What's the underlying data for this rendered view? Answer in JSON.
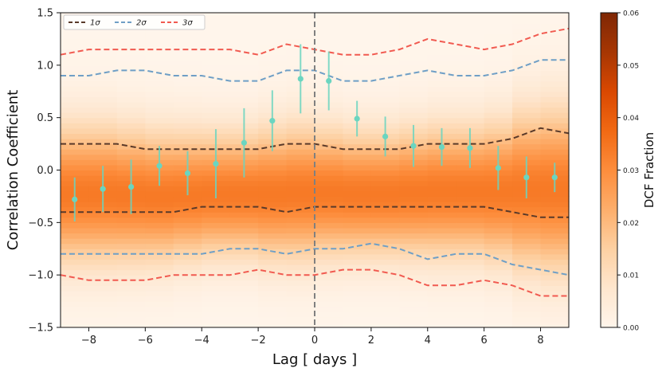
{
  "chart_data": {
    "type": "heatmap",
    "xlabel": "Lag [ days ]",
    "ylabel": "Correlation Coefficient",
    "xlim": [
      -9,
      9
    ],
    "ylim": [
      -1.5,
      1.5
    ],
    "x_ticks": [
      -8,
      -6,
      -4,
      -2,
      0,
      2,
      4,
      6,
      8
    ],
    "x_tick_labels": [
      "−8",
      "−6",
      "−4",
      "−2",
      "0",
      "2",
      "4",
      "6",
      "8"
    ],
    "y_ticks": [
      -1.5,
      -1.0,
      -0.5,
      0.0,
      0.5,
      1.0,
      1.5
    ],
    "y_tick_labels": [
      "−1.5",
      "−1.0",
      "−0.5",
      "0.0",
      "0.5",
      "1.0",
      "1.5"
    ],
    "heatmap_bin_centers": [
      -8.5,
      -7.5,
      -6.5,
      -5.5,
      -4.5,
      -3.5,
      -2.5,
      -1.5,
      -0.5,
      0.5,
      1.5,
      2.5,
      3.5,
      4.5,
      5.5,
      6.5,
      7.5,
      8.5
    ],
    "colorbar": {
      "label": "DCF Fraction",
      "range": [
        0.0,
        0.06
      ],
      "ticks": [
        0.0,
        0.01,
        0.02,
        0.03,
        0.04,
        0.05,
        0.06
      ],
      "tick_labels": [
        "0.00",
        "0.01",
        "0.02",
        "0.03",
        "0.04",
        "0.05",
        "0.06"
      ],
      "colors": [
        "#fff5eb",
        "#fee6ce",
        "#fdd0a2",
        "#fdae6b",
        "#fd8d3c",
        "#f16913",
        "#d94801",
        "#a63603",
        "#7f2704"
      ]
    },
    "legend": {
      "position": "top-left",
      "entries": [
        {
          "label": "1σ",
          "color": "#5a3a2a"
        },
        {
          "label": "2σ",
          "color": "#6f9fc6"
        },
        {
          "label": "3σ",
          "color": "#f15a50"
        }
      ]
    },
    "vline": {
      "x": 0,
      "color": "#808080"
    },
    "band_x": [
      -9,
      -8,
      -7,
      -6,
      -5,
      -4,
      -3,
      -2,
      -1,
      0,
      1,
      2,
      3,
      4,
      5,
      6,
      7,
      8,
      9
    ],
    "bands": [
      {
        "name": "3sigma_upper",
        "sigma": "3σ",
        "values": [
          1.1,
          1.15,
          1.15,
          1.15,
          1.15,
          1.15,
          1.15,
          1.1,
          1.2,
          1.15,
          1.1,
          1.1,
          1.15,
          1.25,
          1.2,
          1.15,
          1.2,
          1.3,
          1.35
        ]
      },
      {
        "name": "2sigma_upper",
        "sigma": "2σ",
        "values": [
          0.9,
          0.9,
          0.95,
          0.95,
          0.9,
          0.9,
          0.85,
          0.85,
          0.95,
          0.95,
          0.85,
          0.85,
          0.9,
          0.95,
          0.9,
          0.9,
          0.95,
          1.05,
          1.05
        ]
      },
      {
        "name": "1sigma_upper",
        "sigma": "1σ",
        "values": [
          0.25,
          0.25,
          0.25,
          0.2,
          0.2,
          0.2,
          0.2,
          0.2,
          0.25,
          0.25,
          0.2,
          0.2,
          0.2,
          0.25,
          0.25,
          0.25,
          0.3,
          0.4,
          0.35
        ]
      },
      {
        "name": "1sigma_lower",
        "sigma": "1σ",
        "values": [
          -0.4,
          -0.4,
          -0.4,
          -0.4,
          -0.4,
          -0.35,
          -0.35,
          -0.35,
          -0.4,
          -0.35,
          -0.35,
          -0.35,
          -0.35,
          -0.35,
          -0.35,
          -0.35,
          -0.4,
          -0.45,
          -0.45
        ]
      },
      {
        "name": "2sigma_lower",
        "sigma": "2σ",
        "values": [
          -0.8,
          -0.8,
          -0.8,
          -0.8,
          -0.8,
          -0.8,
          -0.75,
          -0.75,
          -0.8,
          -0.75,
          -0.75,
          -0.7,
          -0.75,
          -0.85,
          -0.8,
          -0.8,
          -0.9,
          -0.95,
          -1.0
        ]
      },
      {
        "name": "3sigma_lower",
        "sigma": "3σ",
        "values": [
          -1.0,
          -1.05,
          -1.05,
          -1.05,
          -1.0,
          -1.0,
          -1.0,
          -0.95,
          -1.0,
          -1.0,
          -0.95,
          -0.95,
          -1.0,
          -1.1,
          -1.1,
          -1.05,
          -1.1,
          -1.2,
          -1.2
        ]
      }
    ],
    "dcf_points": {
      "color": "#6bd5c0",
      "x": [
        -8.5,
        -7.5,
        -6.5,
        -5.5,
        -4.5,
        -3.5,
        -2.5,
        -1.5,
        -0.5,
        0.5,
        1.5,
        2.5,
        3.5,
        4.5,
        5.5,
        6.5,
        7.5,
        8.5
      ],
      "y": [
        -0.28,
        -0.18,
        -0.16,
        0.04,
        -0.03,
        0.06,
        0.26,
        0.47,
        0.87,
        0.85,
        0.49,
        0.32,
        0.23,
        0.22,
        0.21,
        0.02,
        -0.07,
        -0.07
      ],
      "err": [
        0.21,
        0.22,
        0.26,
        0.19,
        0.21,
        0.33,
        0.33,
        0.29,
        0.33,
        0.28,
        0.17,
        0.19,
        0.2,
        0.18,
        0.19,
        0.21,
        0.2,
        0.14
      ]
    }
  }
}
